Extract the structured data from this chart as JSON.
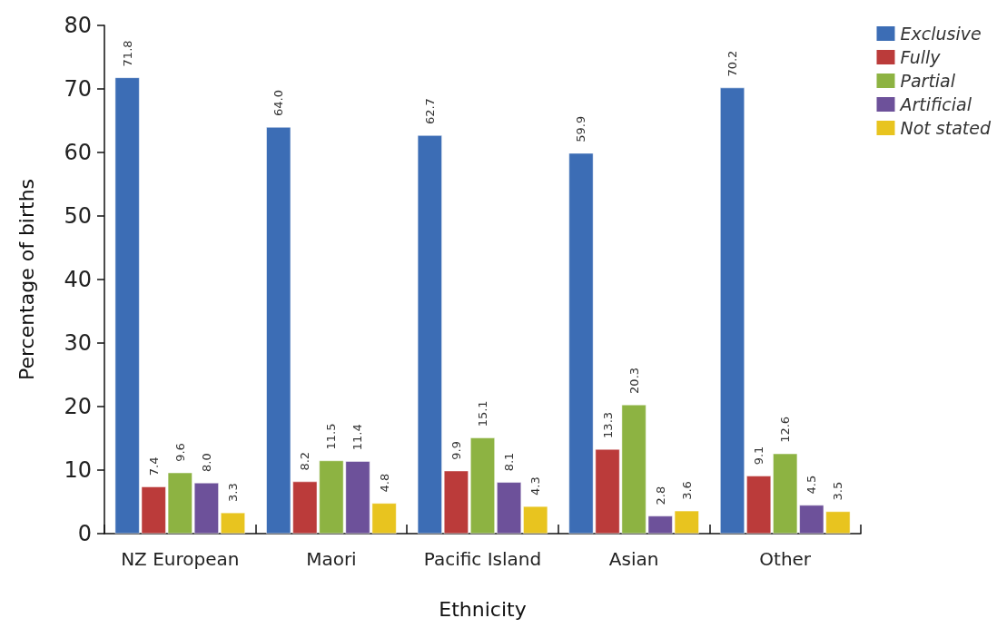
{
  "chart_data": {
    "type": "bar",
    "xlabel": "Ethnicity",
    "ylabel": "Percentage of births",
    "categories": [
      "NZ European",
      "Maori",
      "Pacific Island",
      "Asian",
      "Other"
    ],
    "series": [
      {
        "name": "Exclusive",
        "color": "#3c6db5",
        "values": [
          71.8,
          64.0,
          62.7,
          59.9,
          70.2
        ],
        "value_labels": [
          "71.8",
          "64.0",
          "62.7",
          "59.9",
          "70.2"
        ]
      },
      {
        "name": "Fully",
        "color": "#bb3b3a",
        "values": [
          7.4,
          8.2,
          9.9,
          13.3,
          9.1
        ],
        "value_labels": [
          "7.4",
          "8.2",
          "9.9",
          "13.3",
          "9.1"
        ]
      },
      {
        "name": "Partial",
        "color": "#8db342",
        "values": [
          9.6,
          11.5,
          15.1,
          20.3,
          12.6
        ],
        "value_labels": [
          "9.6",
          "11.5",
          "15.1",
          "20.3",
          "12.6"
        ]
      },
      {
        "name": "Artificial",
        "color": "#6d519a",
        "values": [
          8.0,
          11.4,
          8.1,
          2.8,
          4.5
        ],
        "value_labels": [
          "8.0",
          "11.4",
          "8.1",
          "2.8",
          "4.5"
        ]
      },
      {
        "name": "Not stated",
        "color": "#e8c41f",
        "values": [
          3.3,
          4.8,
          4.3,
          3.6,
          3.5
        ],
        "value_labels": [
          "3.3",
          "4.8",
          "4.3",
          "3.6",
          "3.5"
        ]
      }
    ],
    "ylim": [
      0,
      80
    ],
    "yticks": [
      0,
      10,
      20,
      30,
      40,
      50,
      60,
      70,
      80
    ],
    "grid": false,
    "legend": "top right"
  }
}
